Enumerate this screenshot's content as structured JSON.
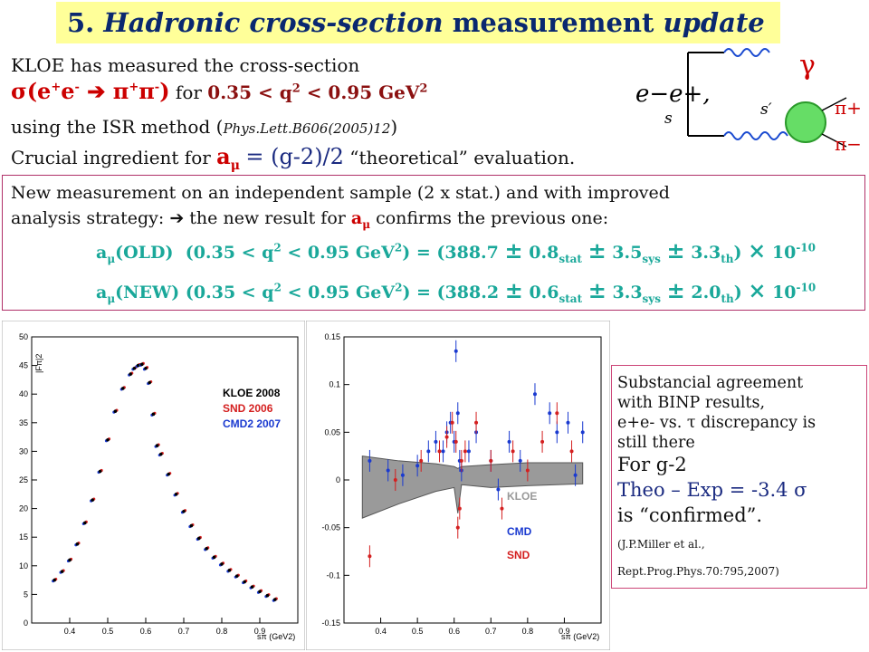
{
  "title": {
    "number": "5.",
    "part1": "Hadronic cross-section",
    "part2": "measurement",
    "part3": "update"
  },
  "intro": {
    "line1": "KLOE has measured the cross-section",
    "reaction": "σ(e+e- → π+π-)",
    "range_prefix": "for",
    "range": "0.35 < q2 < 0.95 GeV2",
    "line3_a": "using the ISR method (",
    "line3_ref": "Phys.Lett.B606(2005)12",
    "line3_b": ")",
    "line4_a": "Crucial ingredient for",
    "line4_b": "= (g-2)/2",
    "line4_c": "“theoretical” evaluation."
  },
  "feynman": {
    "ee": "e−e+,",
    "s": "s",
    "s_prime": "s′",
    "gamma": "γ",
    "pi_plus": "π+",
    "pi_minus": "π−"
  },
  "new_measurement": {
    "line1": "New measurement on an independent sample (2 x stat.) and with improved",
    "line2_a": "analysis strategy:",
    "line2_b": "the new result for",
    "line2_c": "confirms the previous one:",
    "old_label": "(OLD)",
    "new_label": "(NEW)",
    "range": "(0.35 < q2 < 0.95 GeV2) =",
    "old_value": "388.7",
    "old_stat": "0.8",
    "old_sys": "3.5",
    "old_th": "3.3",
    "new_value": "388.2",
    "new_stat": "0.6",
    "new_sys": "3.3",
    "new_th": "2.0",
    "factor": "× 10-10"
  },
  "side_text": {
    "l1": "Substancial agreement",
    "l2": "with BINP results,",
    "l3": "e+e- vs. τ discrepancy is",
    "l4": "still there",
    "l5": "For g-2",
    "l6": "Theo – Exp = -3.4 σ",
    "l7": "is “confirmed”.",
    "l8": "(J.P.Miller et al.,",
    "l9": "Rept.Prog.Phys.70:795,2007)"
  },
  "chart_data": [
    {
      "type": "scatter",
      "xlabel": "sπ (GeV2)",
      "ylabel": "|Fπ|2",
      "xlim": [
        0.3,
        1.0
      ],
      "ylim": [
        0,
        50
      ],
      "xticks": [
        "0.4",
        "0.5",
        "0.6",
        "0.7",
        "0.8",
        "0.9"
      ],
      "yticks": [
        "0",
        "5",
        "10",
        "15",
        "20",
        "25",
        "30",
        "35",
        "40",
        "45",
        "50"
      ],
      "legend": [
        "KLOE 2008",
        "SND 2006",
        "CMD2 2007"
      ],
      "legend_colors": [
        "#000000",
        "#d42020",
        "#1a3ad0"
      ],
      "x": [
        0.36,
        0.38,
        0.4,
        0.42,
        0.44,
        0.46,
        0.48,
        0.5,
        0.52,
        0.54,
        0.56,
        0.57,
        0.58,
        0.59,
        0.6,
        0.61,
        0.62,
        0.63,
        0.64,
        0.66,
        0.68,
        0.7,
        0.72,
        0.74,
        0.76,
        0.78,
        0.8,
        0.82,
        0.84,
        0.86,
        0.88,
        0.9,
        0.92,
        0.94
      ],
      "y": [
        7.5,
        9.0,
        11.0,
        13.8,
        17.5,
        21.5,
        26.5,
        32.0,
        37.0,
        41.0,
        43.5,
        44.5,
        45.0,
        45.2,
        44.5,
        42.0,
        36.5,
        31.0,
        29.5,
        26.0,
        22.5,
        19.5,
        17.0,
        14.8,
        13.0,
        11.5,
        10.3,
        9.2,
        8.2,
        7.2,
        6.3,
        5.5,
        4.8,
        4.1
      ]
    },
    {
      "type": "scatter",
      "xlabel": "sπ (GeV2)",
      "xlim": [
        0.3,
        1.0
      ],
      "ylim": [
        -0.15,
        0.15
      ],
      "xticks": [
        "0.4",
        "0.5",
        "0.6",
        "0.7",
        "0.8",
        "0.9"
      ],
      "yticks": [
        "-0.15",
        "-0.1",
        "-0.05",
        "0",
        "0.05",
        "0.1",
        "0.15"
      ],
      "legend": [
        "KLOE",
        "CMD",
        "SND"
      ],
      "legend_colors": [
        "#999999",
        "#1a3ad0",
        "#d42020"
      ],
      "band": {
        "x": [
          0.35,
          0.45,
          0.55,
          0.6,
          0.61,
          0.62,
          0.7,
          0.8,
          0.95
        ],
        "upper": [
          0.025,
          0.02,
          0.017,
          0.014,
          0.012,
          0.014,
          0.016,
          0.018,
          0.018
        ],
        "lower": [
          -0.04,
          -0.025,
          -0.012,
          -0.008,
          -0.035,
          -0.005,
          -0.008,
          -0.006,
          -0.004
        ]
      },
      "series": [
        {
          "name": "CMD",
          "x": [
            0.37,
            0.42,
            0.46,
            0.5,
            0.53,
            0.55,
            0.57,
            0.58,
            0.59,
            0.6,
            0.605,
            0.61,
            0.615,
            0.62,
            0.64,
            0.66,
            0.7,
            0.72,
            0.75,
            0.78,
            0.82,
            0.86,
            0.88,
            0.91,
            0.93,
            0.95
          ],
          "y": [
            0.02,
            0.01,
            0.005,
            0.015,
            0.03,
            0.04,
            0.03,
            0.05,
            0.06,
            0.04,
            0.135,
            0.07,
            0.02,
            0.01,
            0.03,
            0.05,
            0.02,
            -0.01,
            0.04,
            0.02,
            0.09,
            0.07,
            0.05,
            0.06,
            0.005,
            0.05
          ]
        },
        {
          "name": "SND",
          "x": [
            0.37,
            0.44,
            0.51,
            0.56,
            0.58,
            0.595,
            0.605,
            0.61,
            0.615,
            0.62,
            0.63,
            0.66,
            0.7,
            0.73,
            0.76,
            0.8,
            0.84,
            0.88,
            0.92
          ],
          "y": [
            -0.08,
            0.0,
            0.02,
            0.03,
            0.045,
            0.06,
            0.04,
            -0.05,
            -0.03,
            0.02,
            0.03,
            0.06,
            0.02,
            -0.03,
            0.03,
            0.01,
            0.04,
            0.07,
            0.03
          ]
        }
      ]
    }
  ]
}
